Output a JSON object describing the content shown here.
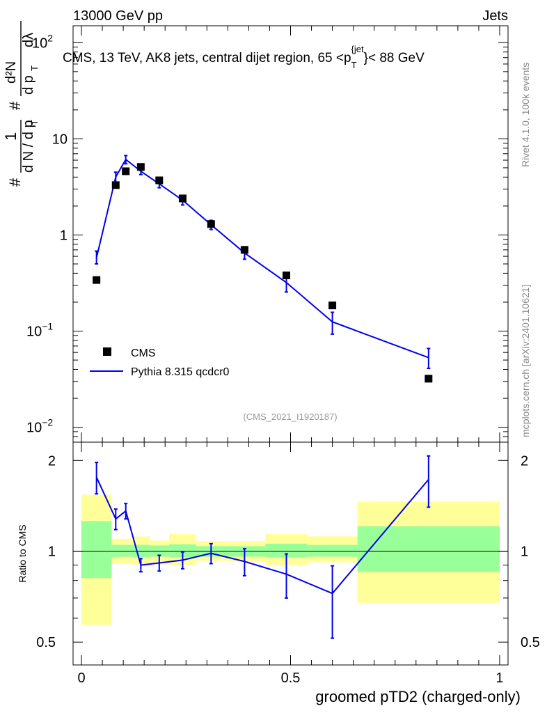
{
  "header": {
    "left": "13000 GeV pp",
    "right": "Jets"
  },
  "side_labels": {
    "rivet": "Rivet 4.1.0,  100k events",
    "mcplots": "mcplots.cern.ch [arXiv:2401.10621]"
  },
  "colors": {
    "mc": "#0000ee",
    "data": "#000000",
    "band_inner": "#99ff99",
    "band_outer": "#ffff99"
  },
  "chart_data": [
    {
      "type": "line",
      "panel": "main",
      "title_parts": {
        "pre": "CMS, 13 TeV, AK8 jets, central dijet region, 65 <p",
        "sub": "T",
        "sup": "{jet",
        "post": "}< 88 GeV"
      },
      "ylabel_parts": {
        "hash": "#",
        "one": "1",
        "dN_dpT": "d N / d p",
        "T": "T",
        "d2N": "d²N",
        "dpT_dlambda": "d p",
        "dlambda": "dλ"
      },
      "yscale": "log",
      "ylim": [
        0.007,
        150
      ],
      "xlim": [
        -0.02,
        1.02
      ],
      "yticks": [
        {
          "value": 0.01,
          "label": "10",
          "exp": "−2"
        },
        {
          "value": 0.1,
          "label": "10",
          "exp": "−1"
        },
        {
          "value": 1,
          "label": "1",
          "exp": ""
        },
        {
          "value": 10,
          "label": "10",
          "exp": ""
        },
        {
          "value": 100,
          "label": "10",
          "exp": "2"
        }
      ],
      "analysis_tag": "(CMS_2021_I1920187)",
      "legend": [
        {
          "name": "CMS",
          "marker": "square"
        },
        {
          "name": "Pythia 8.315 qcdcr0",
          "marker": "line"
        }
      ],
      "series": [
        {
          "name": "CMS",
          "style": "markers",
          "x": [
            0.036,
            0.082,
            0.106,
            0.142,
            0.186,
            0.242,
            0.31,
            0.39,
            0.49,
            0.6,
            0.83
          ],
          "y": [
            0.34,
            3.3,
            4.6,
            5.1,
            3.7,
            2.4,
            1.3,
            0.7,
            0.38,
            0.185,
            0.032
          ]
        },
        {
          "name": "Pythia 8.315 qcdcr0",
          "style": "line",
          "x": [
            0.036,
            0.082,
            0.106,
            0.142,
            0.186,
            0.242,
            0.31,
            0.39,
            0.49,
            0.6,
            0.83
          ],
          "y": [
            0.58,
            4.0,
            6.1,
            4.6,
            3.4,
            2.3,
            1.28,
            0.65,
            0.32,
            0.125,
            0.053
          ],
          "err_low": [
            0.08,
            0.5,
            0.6,
            0.35,
            0.3,
            0.25,
            0.14,
            0.09,
            0.065,
            0.032,
            0.012
          ],
          "err_high": [
            0.1,
            0.5,
            0.6,
            0.35,
            0.3,
            0.25,
            0.14,
            0.09,
            0.065,
            0.032,
            0.013
          ]
        }
      ]
    },
    {
      "type": "line",
      "panel": "ratio",
      "ylabel": "Ratio to CMS",
      "xlabel": "groomed pTD2 (charged-only)",
      "xlim": [
        -0.02,
        1.02
      ],
      "ylim": [
        0.42,
        2.3
      ],
      "yscale": "log",
      "yticks": [
        {
          "value": 0.5,
          "label": "0.5"
        },
        {
          "value": 1,
          "label": "1"
        },
        {
          "value": 2,
          "label": "2"
        }
      ],
      "xticks": [
        {
          "value": 0,
          "label": "0"
        },
        {
          "value": 0.5,
          "label": "0.5"
        },
        {
          "value": 1,
          "label": "1"
        }
      ],
      "bands": {
        "edges": [
          0,
          0.072,
          0.092,
          0.12,
          0.164,
          0.21,
          0.274,
          0.35,
          0.44,
          0.54,
          0.66,
          1.0
        ],
        "inner_low": [
          0.815,
          0.955,
          0.96,
          0.955,
          0.96,
          0.955,
          0.96,
          0.96,
          0.955,
          0.96,
          0.855
        ],
        "inner_high": [
          1.26,
          1.05,
          1.05,
          1.05,
          1.045,
          1.055,
          1.04,
          1.04,
          1.06,
          1.05,
          1.21
        ],
        "outer_low": [
          0.57,
          0.91,
          0.91,
          0.905,
          0.92,
          0.9,
          0.93,
          0.925,
          0.9,
          0.92,
          0.675
        ],
        "outer_high": [
          1.54,
          1.1,
          1.1,
          1.12,
          1.085,
          1.14,
          1.08,
          1.08,
          1.14,
          1.12,
          1.46
        ]
      },
      "series": [
        {
          "name": "Pythia 8.315 qcdcr0 / CMS",
          "x": [
            0.036,
            0.082,
            0.106,
            0.142,
            0.186,
            0.242,
            0.31,
            0.39,
            0.49,
            0.6,
            0.83
          ],
          "y": [
            1.76,
            1.28,
            1.36,
            0.9,
            0.915,
            0.935,
            0.985,
            0.925,
            0.84,
            0.725,
            1.73
          ],
          "err_low": [
            0.21,
            0.1,
            0.08,
            0.045,
            0.055,
            0.06,
            0.075,
            0.095,
            0.14,
            0.21,
            0.33
          ],
          "err_high": [
            0.21,
            0.1,
            0.08,
            0.045,
            0.055,
            0.06,
            0.075,
            0.095,
            0.14,
            0.17,
            0.34
          ]
        }
      ]
    }
  ]
}
